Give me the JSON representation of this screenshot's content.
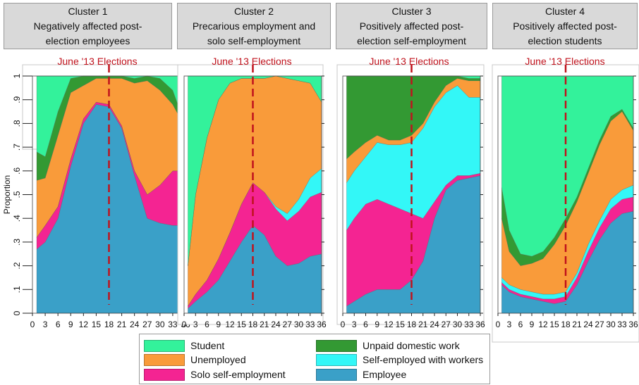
{
  "panel_titles": [
    {
      "line1": "Cluster 1",
      "line2": "Negatively affected post-",
      "line3": "election employees"
    },
    {
      "line1": "Cluster 2",
      "line2": "Precarious employment and",
      "line3": "solo self-employment"
    },
    {
      "line1": "Cluster 3",
      "line2": "Positively affected post-",
      "line3": "election self-employment"
    },
    {
      "line1": "Cluster 4",
      "line2": "Positively affected post-",
      "line3": "election students"
    }
  ],
  "colors": {
    "Employee": "#3aa0c8",
    "Solo self-employment": "#f42492",
    "Self-employed with workers": "#33f7f7",
    "Unemployed": "#f99b3a",
    "Unpaid domestic work": "#339933",
    "Student": "#33f29b",
    "election_line": "#c0121c",
    "election_label": "#c0121c"
  },
  "legend": [
    {
      "label": "Student",
      "color": "#33f29b"
    },
    {
      "label": "Unpaid domestic work",
      "color": "#339933"
    },
    {
      "label": "Unemployed",
      "color": "#f99b3a"
    },
    {
      "label": "Self-employed with workers",
      "color": "#33f7f7"
    },
    {
      "label": "Solo self-employment",
      "color": "#f42492"
    },
    {
      "label": "Employee",
      "color": "#3aa0c8"
    }
  ],
  "chart_data": [
    {
      "type": "area",
      "title": "Cluster 1 Negatively affected post-election employees",
      "ylabel": "Proportion",
      "xlim": [
        0,
        36
      ],
      "ylim": [
        0,
        1
      ],
      "xticks": [
        0,
        3,
        6,
        9,
        12,
        15,
        18,
        21,
        24,
        27,
        30,
        33,
        36
      ],
      "yticks": [
        0,
        0.1,
        0.2,
        0.3,
        0.4,
        0.5,
        0.6,
        0.7,
        0.8,
        0.9,
        1
      ],
      "ytick_labels": [
        "0",
        ".1",
        ".2",
        ".3",
        ".4",
        ".5",
        ".6",
        ".7",
        ".8",
        ".9",
        "1"
      ],
      "annotation": {
        "label": "June '13 Elections",
        "x": 18
      },
      "x": [
        1,
        3,
        6,
        9,
        12,
        15,
        18,
        21,
        24,
        27,
        30,
        33,
        36
      ],
      "series": [
        {
          "name": "Employee",
          "values": [
            0.27,
            0.3,
            0.4,
            0.62,
            0.8,
            0.88,
            0.87,
            0.78,
            0.58,
            0.4,
            0.38,
            0.37,
            0.37
          ]
        },
        {
          "name": "Solo self-employment",
          "values": [
            0.05,
            0.07,
            0.05,
            0.03,
            0.02,
            0.01,
            0.01,
            0.01,
            0.02,
            0.1,
            0.16,
            0.23,
            0.23
          ]
        },
        {
          "name": "Self-employed with workers",
          "values": [
            0,
            0,
            0,
            0,
            0,
            0,
            0,
            0,
            0,
            0,
            0,
            0,
            0
          ]
        },
        {
          "name": "Unemployed",
          "values": [
            0.24,
            0.2,
            0.3,
            0.28,
            0.14,
            0.1,
            0.11,
            0.2,
            0.37,
            0.48,
            0.4,
            0.28,
            0.18
          ]
        },
        {
          "name": "Unpaid domestic work",
          "values": [
            0.12,
            0.09,
            0.1,
            0.06,
            0.04,
            0.01,
            0.01,
            0.01,
            0.02,
            0.03,
            0.05,
            0.06,
            0.01
          ]
        },
        {
          "name": "Student",
          "values": [
            0.32,
            0.34,
            0.15,
            0.01,
            0,
            0,
            0,
            0,
            0.01,
            0,
            0.01,
            0.06,
            0.21
          ]
        }
      ]
    },
    {
      "type": "area",
      "title": "Cluster 2 Precarious employment and solo self-employment",
      "xlim": [
        0,
        36
      ],
      "ylim": [
        0,
        1
      ],
      "xticks": [
        0,
        3,
        6,
        9,
        12,
        15,
        18,
        21,
        24,
        27,
        30,
        33,
        36
      ],
      "annotation": {
        "label": "June '13 Elections",
        "x": 18
      },
      "x": [
        1,
        3,
        6,
        9,
        12,
        15,
        18,
        21,
        24,
        27,
        30,
        33,
        36
      ],
      "series": [
        {
          "name": "Employee",
          "values": [
            0.02,
            0.05,
            0.09,
            0.14,
            0.22,
            0.3,
            0.37,
            0.33,
            0.24,
            0.2,
            0.21,
            0.24,
            0.25
          ]
        },
        {
          "name": "Solo self-employment",
          "values": [
            0.01,
            0.03,
            0.05,
            0.09,
            0.12,
            0.16,
            0.18,
            0.18,
            0.2,
            0.19,
            0.22,
            0.25,
            0.26
          ]
        },
        {
          "name": "Self-employed with workers",
          "values": [
            0,
            0,
            0,
            0,
            0,
            0,
            0,
            0,
            0.01,
            0.03,
            0.05,
            0.08,
            0.1
          ]
        },
        {
          "name": "Unemployed",
          "values": [
            0.17,
            0.42,
            0.6,
            0.67,
            0.63,
            0.53,
            0.44,
            0.48,
            0.55,
            0.57,
            0.5,
            0.4,
            0.28
          ]
        },
        {
          "name": "Unpaid domestic work",
          "values": [
            0,
            0,
            0,
            0,
            0,
            0,
            0,
            0,
            0,
            0,
            0,
            0,
            0
          ]
        },
        {
          "name": "Student",
          "values": [
            0.8,
            0.5,
            0.26,
            0.1,
            0.03,
            0.01,
            0.01,
            0.01,
            0,
            0.01,
            0.02,
            0.03,
            0.11
          ]
        }
      ]
    },
    {
      "type": "area",
      "title": "Cluster 3 Positively affected post-election self-employment",
      "xlim": [
        0,
        36
      ],
      "ylim": [
        0,
        1
      ],
      "xticks": [
        0,
        3,
        6,
        9,
        12,
        15,
        18,
        21,
        24,
        27,
        30,
        33,
        36
      ],
      "annotation": {
        "label": "June '13 Elections",
        "x": 18
      },
      "x": [
        1,
        3,
        6,
        9,
        12,
        15,
        18,
        21,
        24,
        27,
        30,
        33,
        36
      ],
      "series": [
        {
          "name": "Employee",
          "values": [
            0.03,
            0.05,
            0.08,
            0.1,
            0.1,
            0.1,
            0.14,
            0.22,
            0.4,
            0.52,
            0.56,
            0.57,
            0.58
          ]
        },
        {
          "name": "Solo self-employment",
          "values": [
            0.32,
            0.35,
            0.38,
            0.38,
            0.36,
            0.34,
            0.28,
            0.18,
            0.07,
            0.02,
            0.02,
            0.01,
            0.01
          ]
        },
        {
          "name": "Self-employed with workers",
          "values": [
            0.2,
            0.2,
            0.2,
            0.24,
            0.25,
            0.27,
            0.3,
            0.38,
            0.4,
            0.39,
            0.38,
            0.33,
            0.32
          ]
        },
        {
          "name": "Unemployed",
          "values": [
            0.1,
            0.08,
            0.06,
            0.03,
            0.02,
            0.02,
            0.03,
            0.02,
            0.02,
            0.03,
            0.03,
            0.07,
            0.07
          ]
        },
        {
          "name": "Unpaid domestic work",
          "values": [
            0.35,
            0.32,
            0.28,
            0.25,
            0.27,
            0.27,
            0.25,
            0.2,
            0.11,
            0.04,
            0.01,
            0.01,
            0.01
          ]
        },
        {
          "name": "Student",
          "values": [
            0,
            0,
            0,
            0,
            0,
            0,
            0,
            0,
            0,
            0,
            0,
            0.01,
            0.01
          ]
        }
      ]
    },
    {
      "type": "area",
      "title": "Cluster 4 Positively affected post-election students",
      "xlim": [
        0,
        36
      ],
      "ylim": [
        0,
        1
      ],
      "xticks": [
        0,
        3,
        6,
        9,
        12,
        15,
        18,
        21,
        24,
        27,
        30,
        33,
        36
      ],
      "annotation": {
        "label": "June '13 Elections",
        "x": 18
      },
      "x": [
        1,
        3,
        6,
        9,
        12,
        15,
        18,
        21,
        24,
        27,
        30,
        33,
        36
      ],
      "series": [
        {
          "name": "Employee",
          "values": [
            0.12,
            0.09,
            0.07,
            0.06,
            0.05,
            0.04,
            0.05,
            0.12,
            0.22,
            0.31,
            0.38,
            0.42,
            0.43
          ]
        },
        {
          "name": "Solo self-employment",
          "values": [
            0.01,
            0.01,
            0.01,
            0.01,
            0.01,
            0.02,
            0.02,
            0.03,
            0.04,
            0.05,
            0.06,
            0.06,
            0.06
          ]
        },
        {
          "name": "Self-employed with workers",
          "values": [
            0.02,
            0.02,
            0.02,
            0.02,
            0.02,
            0.02,
            0.02,
            0.02,
            0.03,
            0.03,
            0.04,
            0.04,
            0.05
          ]
        },
        {
          "name": "Unemployed",
          "values": [
            0.25,
            0.14,
            0.1,
            0.12,
            0.15,
            0.21,
            0.28,
            0.3,
            0.3,
            0.32,
            0.33,
            0.33,
            0.23
          ]
        },
        {
          "name": "Unpaid domestic work",
          "values": [
            0.13,
            0.09,
            0.05,
            0.03,
            0.03,
            0.03,
            0.03,
            0.02,
            0.02,
            0.02,
            0.02,
            0.01,
            0.01
          ]
        },
        {
          "name": "Student",
          "values": [
            0.47,
            0.65,
            0.75,
            0.76,
            0.74,
            0.68,
            0.6,
            0.51,
            0.39,
            0.27,
            0.17,
            0.14,
            0.22
          ]
        }
      ]
    }
  ]
}
